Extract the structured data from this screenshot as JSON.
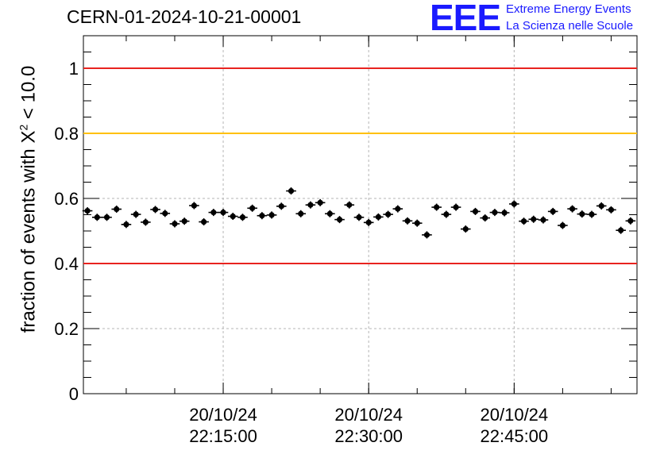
{
  "header": {
    "title": "CERN-01-2024-10-21-00001",
    "logo_mark": "EEE",
    "logo_line1": "Extreme Energy Events",
    "logo_line2": "La Scienza nelle Scuole"
  },
  "chart_data": {
    "type": "scatter",
    "title": "CERN-01-2024-10-21-00001",
    "ylabel_prefix": "fraction of events with ",
    "ylabel_symbol": "X",
    "ylabel_sup": "2",
    "ylabel_suffix": " < 10.0",
    "xlabel": "",
    "ylim": [
      0,
      1.1
    ],
    "xlim": [
      "20/10/24 22:00:35",
      "20/10/24 22:57:40"
    ],
    "grid": true,
    "y_ticks": [
      {
        "value": 0,
        "label": "0"
      },
      {
        "value": 0.2,
        "label": "0.2"
      },
      {
        "value": 0.4,
        "label": "0.4"
      },
      {
        "value": 0.6,
        "label": "0.6"
      },
      {
        "value": 0.8,
        "label": "0.8"
      },
      {
        "value": 1,
        "label": "1"
      }
    ],
    "x_ticks": [
      {
        "value": "20/10/24 22:15:00",
        "date": "20/10/24",
        "time": "22:15:00"
      },
      {
        "value": "20/10/24 22:30:00",
        "date": "20/10/24",
        "time": "22:30:00"
      },
      {
        "value": "20/10/24 22:45:00",
        "date": "20/10/24",
        "time": "22:45:00"
      }
    ],
    "reference_lines": [
      {
        "y": 1.0,
        "color": "#e8231f"
      },
      {
        "y": 0.8,
        "color": "#ffc000"
      },
      {
        "y": 0.4,
        "color": "#e8231f"
      }
    ],
    "series": [
      {
        "color": "#000000",
        "x": [
          "20/10/24 22:01:00",
          "20/10/24 22:02:00",
          "20/10/24 22:03:00",
          "20/10/24 22:04:00",
          "20/10/24 22:05:00",
          "20/10/24 22:06:00",
          "20/10/24 22:07:00",
          "20/10/24 22:08:00",
          "20/10/24 22:09:00",
          "20/10/24 22:10:00",
          "20/10/24 22:11:00",
          "20/10/24 22:12:00",
          "20/10/24 22:13:00",
          "20/10/24 22:14:00",
          "20/10/24 22:15:00",
          "20/10/24 22:16:00",
          "20/10/24 22:17:00",
          "20/10/24 22:18:00",
          "20/10/24 22:19:00",
          "20/10/24 22:20:00",
          "20/10/24 22:21:00",
          "20/10/24 22:22:00",
          "20/10/24 22:23:00",
          "20/10/24 22:24:00",
          "20/10/24 22:25:00",
          "20/10/24 22:26:00",
          "20/10/24 22:27:00",
          "20/10/24 22:28:00",
          "20/10/24 22:29:00",
          "20/10/24 22:30:00",
          "20/10/24 22:31:00",
          "20/10/24 22:32:00",
          "20/10/24 22:33:00",
          "20/10/24 22:34:00",
          "20/10/24 22:35:00",
          "20/10/24 22:36:00",
          "20/10/24 22:37:00",
          "20/10/24 22:38:00",
          "20/10/24 22:39:00",
          "20/10/24 22:40:00",
          "20/10/24 22:41:00",
          "20/10/24 22:42:00",
          "20/10/24 22:43:00",
          "20/10/24 22:44:00",
          "20/10/24 22:45:00",
          "20/10/24 22:46:00",
          "20/10/24 22:47:00",
          "20/10/24 22:48:00",
          "20/10/24 22:49:00",
          "20/10/24 22:50:00",
          "20/10/24 22:51:00",
          "20/10/24 22:52:00",
          "20/10/24 22:53:00",
          "20/10/24 22:54:00",
          "20/10/24 22:55:00",
          "20/10/24 22:56:00",
          "20/10/24 22:57:00"
        ],
        "y": [
          0.562,
          0.542,
          0.542,
          0.567,
          0.52,
          0.551,
          0.527,
          0.566,
          0.554,
          0.522,
          0.53,
          0.578,
          0.528,
          0.557,
          0.557,
          0.545,
          0.542,
          0.57,
          0.547,
          0.549,
          0.576,
          0.623,
          0.553,
          0.58,
          0.587,
          0.553,
          0.535,
          0.58,
          0.542,
          0.526,
          0.543,
          0.551,
          0.568,
          0.531,
          0.524,
          0.488,
          0.573,
          0.551,
          0.573,
          0.506,
          0.56,
          0.54,
          0.557,
          0.556,
          0.583,
          0.53,
          0.536,
          0.534,
          0.56,
          0.517,
          0.568,
          0.552,
          0.551,
          0.577,
          0.565,
          0.502,
          0.531
        ],
        "yerr": [
          0.011,
          0.011,
          0.011,
          0.011,
          0.011,
          0.011,
          0.011,
          0.011,
          0.011,
          0.011,
          0.011,
          0.011,
          0.011,
          0.011,
          0.011,
          0.011,
          0.011,
          0.011,
          0.011,
          0.011,
          0.011,
          0.011,
          0.011,
          0.011,
          0.011,
          0.011,
          0.011,
          0.011,
          0.011,
          0.011,
          0.011,
          0.011,
          0.011,
          0.011,
          0.011,
          0.011,
          0.011,
          0.011,
          0.011,
          0.011,
          0.011,
          0.011,
          0.011,
          0.011,
          0.011,
          0.011,
          0.011,
          0.011,
          0.011,
          0.011,
          0.011,
          0.011,
          0.011,
          0.011,
          0.011,
          0.011,
          0.011
        ]
      }
    ]
  }
}
